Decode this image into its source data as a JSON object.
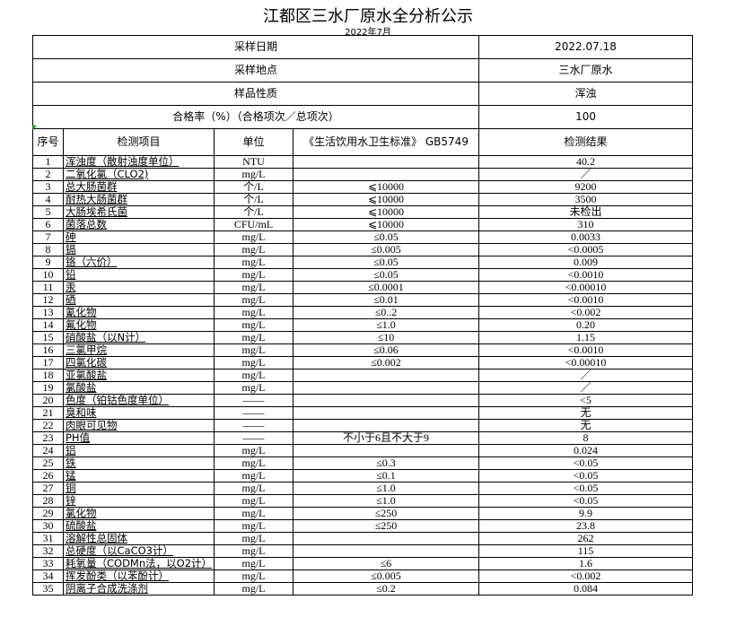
{
  "title": "江都区三水厂原水全分析公示",
  "subtitle": "2022年7月",
  "meta": [
    {
      "label": "采样日期",
      "value": "2022.07.18"
    },
    {
      "label": "采样地点",
      "value": "三水厂原水"
    },
    {
      "label": "样品性质",
      "value": "浑浊"
    },
    {
      "label": "合格率（%）（合格项次／总项次）",
      "value": "100"
    }
  ],
  "columns": [
    "序号",
    "检测项目",
    "单位",
    "《生活饮用水卫生标准》 GB5749",
    "检测结果"
  ],
  "rows": [
    [
      "1",
      "浑浊度（散射浊度单位）",
      "NTU",
      "",
      "40.2"
    ],
    [
      "2",
      "二氧化氯（CLO2)",
      "mg/L",
      "",
      "／"
    ],
    [
      "3",
      "总大肠菌群",
      "个/L",
      "⩽10000",
      "9200"
    ],
    [
      "4",
      "耐热大肠菌群",
      "个/L",
      "⩽10000",
      "3500"
    ],
    [
      "5",
      "大肠埃希氏菌",
      "个/L",
      "⩽10000",
      "未检出"
    ],
    [
      "6",
      "菌落总数",
      "CFU/mL",
      "⩽10000",
      "310"
    ],
    [
      "7",
      "砷",
      "mg/L",
      "≤0.05",
      "0.0033"
    ],
    [
      "8",
      "镉",
      "mg/L",
      "≤0.005",
      "<0.0005"
    ],
    [
      "9",
      "铬（六价）",
      "mg/L",
      "≤0.05",
      "0.009"
    ],
    [
      "10",
      "铅",
      "mg/L",
      "≤0.05",
      "<0.0010"
    ],
    [
      "11",
      "汞",
      "mg/L",
      "≤0.0001",
      "<0.00010"
    ],
    [
      "12",
      "硒",
      "mg/L",
      "≤0.01",
      "<0.0010"
    ],
    [
      "13",
      "氰化物",
      "mg/L",
      "≤0..2",
      "<0.002"
    ],
    [
      "14",
      "氟化物",
      "mg/L",
      "≤1.0",
      "0.20"
    ],
    [
      "15",
      "硝酸盐（以N计）",
      "mg/L",
      "≤10",
      "1.15"
    ],
    [
      "16",
      "三氯甲烷",
      "mg/L",
      "≤0.06",
      "<0.0010"
    ],
    [
      "17",
      "四氯化碳",
      "mg/L",
      "≤0.002",
      "<0.00010"
    ],
    [
      "18",
      "亚氯酸盐",
      "mg/L",
      "",
      "／"
    ],
    [
      "19",
      "氯酸盐",
      "mg/L",
      "",
      "／"
    ],
    [
      "20",
      "色度（铂钴色度单位）",
      "——",
      "",
      "<5"
    ],
    [
      "21",
      "臭和味",
      "——",
      "",
      "无"
    ],
    [
      "22",
      "肉眼可见物",
      "——",
      "",
      "无"
    ],
    [
      "23",
      "PH值",
      "——",
      "不小于6且不大于9",
      "8"
    ],
    [
      "24",
      "铝",
      "mg/L",
      "",
      "0.024"
    ],
    [
      "25",
      "铁",
      "mg/L",
      "≤0.3",
      "<0.05"
    ],
    [
      "26",
      "锰",
      "mg/L",
      "≤0.1",
      "<0.05"
    ],
    [
      "27",
      "铜",
      "mg/L",
      "≤1.0",
      "<0.05"
    ],
    [
      "28",
      "锌",
      "mg/L",
      "≤1.0",
      "<0.05"
    ],
    [
      "29",
      "氯化物",
      "mg/L",
      "≤250",
      "9.9"
    ],
    [
      "30",
      "硫酸盐",
      "mg/L",
      "≤250",
      "23.8"
    ],
    [
      "31",
      "溶解性总固体",
      "mg/L",
      "",
      "262"
    ],
    [
      "32",
      "总硬度（以CaCO3计）",
      "mg/L",
      "",
      "115"
    ],
    [
      "33",
      "耗氧量（CODMn法，以O2计）",
      "mg/L",
      "≤6",
      "1.6"
    ],
    [
      "34",
      "挥发酚类（以苯酚计）",
      "mg/L",
      "≤0.005",
      "<0.002"
    ],
    [
      "35",
      "阴离子合成洗涤剂",
      "mg/L",
      "≤0.2",
      "0.084"
    ]
  ]
}
